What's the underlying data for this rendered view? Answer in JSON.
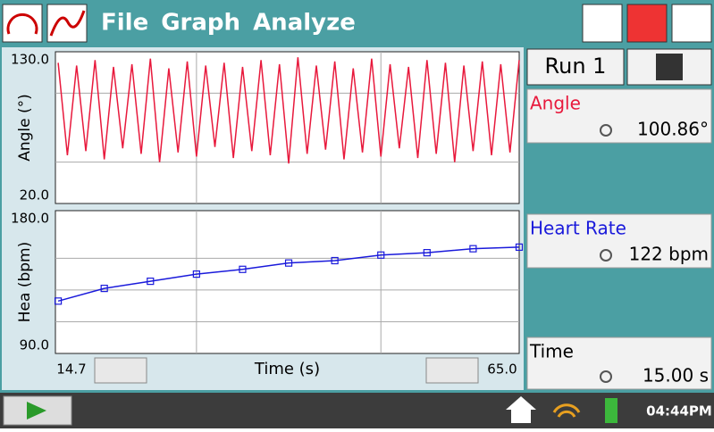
{
  "menu": [
    "File",
    "Graph",
    "Analyze"
  ],
  "run": "Run 1",
  "meters": [
    {
      "name": "Angle",
      "reading": "100.86°",
      "color": "#e8193c"
    },
    {
      "name": "Heart Rate",
      "reading": "122 bpm",
      "color": "#1a1adb"
    },
    {
      "name": "Time",
      "reading": "15.00 s",
      "color": "#000000"
    }
  ],
  "clock": "04:44PM",
  "chart_data": [
    {
      "type": "line",
      "y_label": "Angle (°)",
      "x": [
        15,
        16,
        17,
        18,
        19,
        20,
        21,
        22,
        23,
        24,
        25,
        26,
        27,
        28,
        29,
        30,
        31,
        32,
        33,
        34,
        35,
        36,
        37,
        38,
        39,
        40,
        41,
        42,
        43,
        44,
        45,
        46,
        47,
        48,
        49,
        50,
        51,
        52,
        53,
        54,
        55,
        56,
        57,
        58,
        59,
        60,
        61,
        62,
        63,
        64,
        65
      ],
      "series": [
        {
          "color": "#e8193c",
          "values": [
            122,
            55,
            120,
            58,
            124,
            52,
            119,
            60,
            121,
            56,
            125,
            50,
            118,
            57,
            123,
            54,
            120,
            61,
            122,
            53,
            119,
            58,
            124,
            55,
            121,
            49,
            126,
            56,
            120,
            59,
            123,
            52,
            118,
            57,
            125,
            54,
            121,
            60,
            119,
            53,
            124,
            56,
            122,
            50,
            120,
            58,
            123,
            55,
            121,
            57,
            124
          ]
        }
      ],
      "xlim": [
        14.7,
        65.0
      ],
      "ylim": [
        20,
        130
      ],
      "yticks": [
        {
          "value": 20,
          "label": "20.0"
        },
        {
          "value": 130,
          "label": "130.0"
        }
      ],
      "xgrid": [
        30,
        50
      ],
      "ygrid": [
        50,
        100
      ]
    },
    {
      "type": "line",
      "y_label": "Hea (bpm)",
      "x_label": "Time (s)",
      "x": [
        15,
        20,
        25,
        30,
        35,
        40,
        45,
        50,
        55,
        60,
        65
      ],
      "series": [
        {
          "color": "#1a1adb",
          "values": [
            123,
            131,
            135.5,
            140,
            143,
            147,
            148.5,
            152,
            153.5,
            156,
            157
          ]
        }
      ],
      "xlim": [
        14.7,
        65.0
      ],
      "ylim": [
        90,
        180
      ],
      "xticks": [
        {
          "value": 14.7,
          "label": "14.7"
        },
        {
          "value": 65.0,
          "label": "65.0"
        }
      ],
      "yticks": [
        {
          "value": 90,
          "label": "90.0"
        },
        {
          "value": 180,
          "label": "180.0"
        }
      ],
      "xgrid": [
        30,
        50
      ],
      "ygrid": [
        110,
        130,
        150
      ]
    }
  ]
}
